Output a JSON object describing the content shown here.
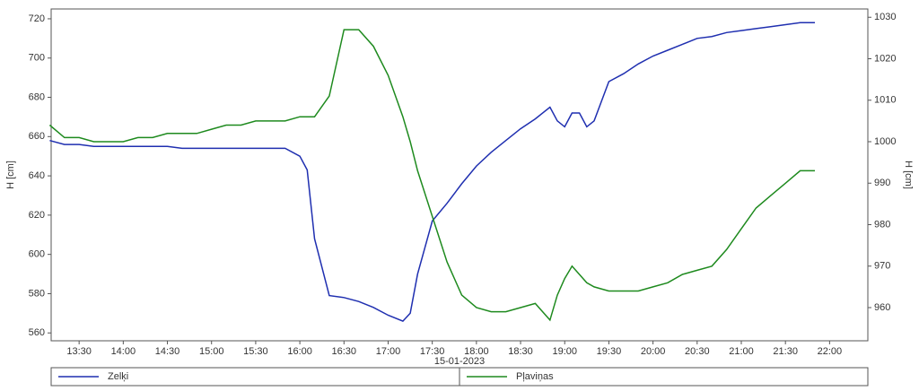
{
  "chart_data": {
    "type": "line",
    "x_label": "15-01-2023",
    "y_label": "H [cm]",
    "y2_label": "H [cm]",
    "x": [
      "13:10",
      "13:20",
      "13:30",
      "13:40",
      "13:50",
      "14:00",
      "14:10",
      "14:20",
      "14:30",
      "14:40",
      "14:50",
      "15:00",
      "15:10",
      "15:20",
      "15:30",
      "15:40",
      "15:50",
      "16:00",
      "16:05",
      "16:10",
      "16:20",
      "16:30",
      "16:40",
      "16:50",
      "17:00",
      "17:10",
      "17:15",
      "17:20",
      "17:30",
      "17:40",
      "17:50",
      "18:00",
      "18:10",
      "18:20",
      "18:30",
      "18:40",
      "18:50",
      "18:55",
      "19:00",
      "19:05",
      "19:10",
      "19:15",
      "19:20",
      "19:30",
      "19:40",
      "19:50",
      "20:00",
      "20:10",
      "20:20",
      "20:30",
      "20:40",
      "20:50",
      "21:00",
      "21:10",
      "21:20",
      "21:30",
      "21:40",
      "21:50"
    ],
    "xlim": [
      "13:11",
      "22:26"
    ],
    "xticks": [
      "13:30",
      "14:00",
      "14:30",
      "15:00",
      "15:30",
      "16:00",
      "16:30",
      "17:00",
      "17:30",
      "18:00",
      "18:30",
      "19:00",
      "19:30",
      "20:00",
      "20:30",
      "21:00",
      "21:30",
      "22:00"
    ],
    "ylim": [
      556,
      725
    ],
    "yticks": [
      560,
      580,
      600,
      620,
      640,
      660,
      680,
      700,
      720
    ],
    "y2lim": [
      952,
      1032
    ],
    "y2ticks": [
      960,
      970,
      980,
      990,
      1000,
      1010,
      1020,
      1030
    ],
    "grid": false,
    "legend": "bottom",
    "series": [
      {
        "name": "Zelķi",
        "color": "#1f2fb0",
        "axis": "y",
        "values": [
          658,
          656,
          656,
          655,
          655,
          655,
          655,
          655,
          655,
          654,
          654,
          654,
          654,
          654,
          654,
          654,
          654,
          650,
          643,
          608,
          579,
          578,
          576,
          573,
          569,
          566,
          570,
          590,
          617,
          626,
          636,
          645,
          652,
          658,
          664,
          669,
          675,
          668,
          665,
          672,
          672,
          665,
          668,
          688,
          692,
          697,
          701,
          704,
          707,
          710,
          711,
          713,
          714,
          715,
          716,
          717,
          718,
          718
        ]
      },
      {
        "name": "Pļaviņas",
        "color": "#1e8a1e",
        "axis": "y2",
        "values": [
          1004,
          1001,
          1001,
          1000,
          1000,
          1000,
          1001,
          1001,
          1002,
          1002,
          1002,
          1003,
          1004,
          1004,
          1005,
          1005,
          1005,
          1006,
          1006,
          1006,
          1011,
          1027,
          1027,
          1023,
          1016,
          1006,
          1000,
          993,
          982,
          971,
          963,
          960,
          959,
          959,
          960,
          961,
          957,
          963,
          967,
          970,
          968,
          966,
          965,
          964,
          964,
          964,
          965,
          966,
          968,
          969,
          970,
          974,
          979,
          984,
          987,
          990,
          993,
          993
        ]
      }
    ]
  }
}
